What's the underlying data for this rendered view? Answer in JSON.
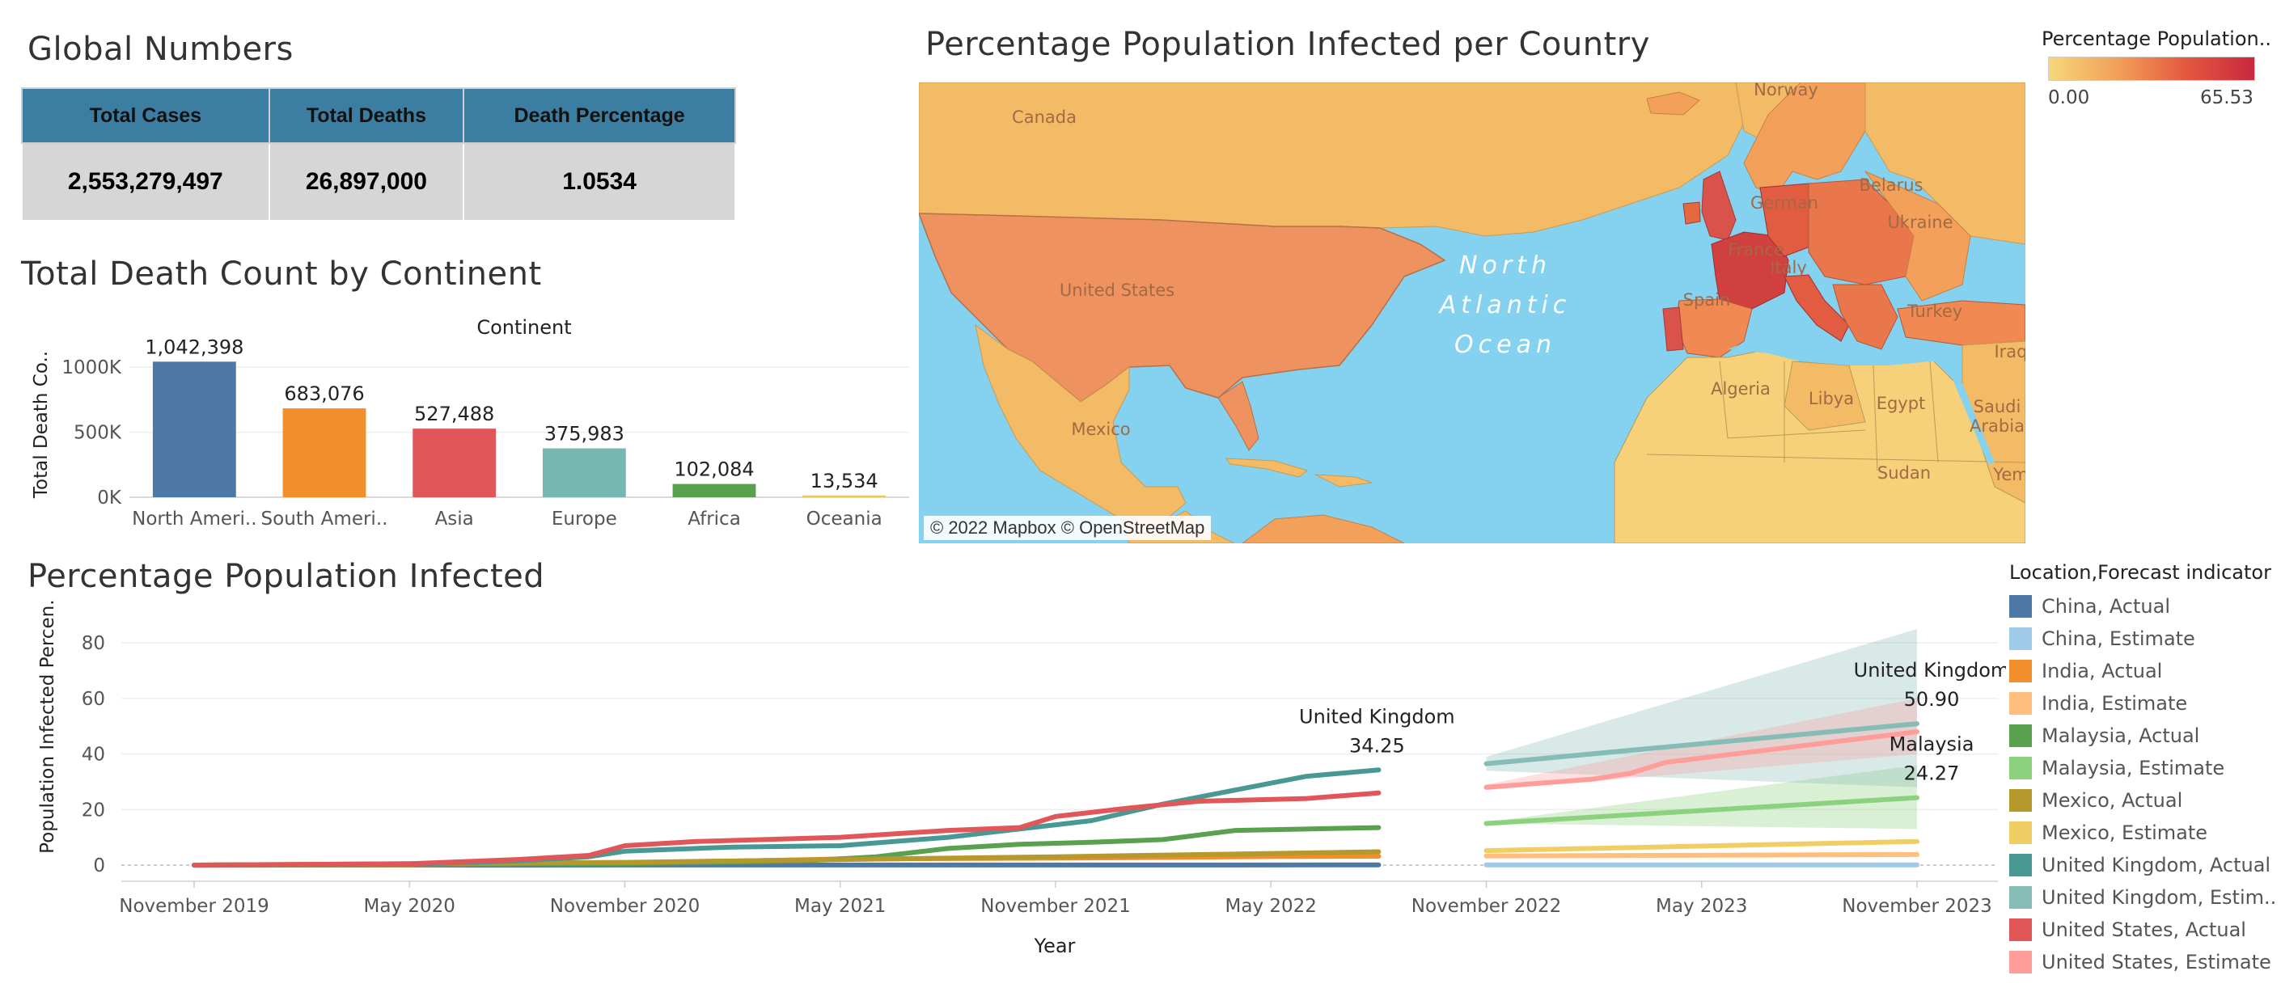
{
  "global_numbers": {
    "title": "Global Numbers",
    "headers": [
      "Total Cases",
      "Total Deaths",
      "Death Percentage"
    ],
    "values": [
      "2,553,279,497",
      "26,897,000",
      "1.0534"
    ],
    "header_color": "#3b7ea1"
  },
  "map": {
    "title": "Percentage Population Infected per Country",
    "attribution": "© 2022 Mapbox © OpenStreetMap",
    "legend_title": "Percentage Population..",
    "legend_min": "0.00",
    "legend_max": "65.53",
    "labels": [
      "Canada",
      "United States",
      "Mexico",
      "North",
      "Atlantic",
      "Ocean",
      "Norway",
      "German",
      "Belarus",
      "Ukraine",
      "France",
      "Italy",
      "Spain",
      "Turkey",
      "Algeria",
      "Libya",
      "Egypt",
      "Saudi",
      "Arabia",
      "Sudan",
      "Iraq",
      "Yem"
    ],
    "colors": {
      "ocean": "#84d2f0",
      "low": "#f7d77a",
      "mid": "#f2a05a",
      "high": "#e4593f",
      "max": "#c9283f"
    }
  },
  "chart_data": [
    {
      "type": "bar",
      "title": "Total Death Count by Continent",
      "header": "Continent",
      "ylabel": "Total Death Co..",
      "categories": [
        "North America",
        "South America",
        "Asia",
        "Europe",
        "Africa",
        "Oceania"
      ],
      "tick_labels": [
        "North Ameri..",
        "South Ameri..",
        "Asia",
        "Europe",
        "Africa",
        "Oceania"
      ],
      "values": [
        1042398,
        683076,
        527488,
        375983,
        102084,
        13534
      ],
      "value_labels": [
        "1,042,398",
        "683,076",
        "527,488",
        "375,983",
        "102,084",
        "13,534"
      ],
      "colors": [
        "#4e79a7",
        "#f28e2b",
        "#e15759",
        "#76b7b2",
        "#59a14f",
        "#edc948"
      ],
      "yticks": [
        0,
        500000,
        1000000
      ],
      "ytick_labels": [
        "0K",
        "500K",
        "1000K"
      ],
      "ylim": [
        0,
        1150000
      ]
    },
    {
      "type": "line",
      "title": "Percentage Population Infected",
      "xlabel": "Year",
      "ylabel": "Population Infected Percen..",
      "ylim": [
        0,
        85
      ],
      "yticks": [
        0,
        20,
        40,
        60,
        80
      ],
      "xticks": [
        "November 2019",
        "May 2020",
        "November 2020",
        "May 2021",
        "November 2021",
        "May 2022",
        "November 2022",
        "May 2023",
        "November 2023"
      ],
      "x_unit": "months since Nov 2019 (0-48)",
      "legend_title": "Location,Forecast indicator",
      "series": [
        {
          "name": "China, Actual",
          "color": "#4e79a7",
          "x": [
            0,
            33
          ],
          "values": [
            0.01,
            0.07
          ]
        },
        {
          "name": "China, Estimate",
          "color": "#a0cbe8",
          "x": [
            36,
            48
          ],
          "values": [
            0.08,
            0.1
          ]
        },
        {
          "name": "India, Actual",
          "color": "#f28e2b",
          "x": [
            0,
            6,
            12,
            18,
            24,
            30,
            33
          ],
          "values": [
            0,
            0.1,
            0.7,
            2.2,
            2.5,
            3.1,
            3.2
          ]
        },
        {
          "name": "India, Estimate",
          "color": "#ffbe7d",
          "x": [
            36,
            48
          ],
          "values": [
            3.3,
            3.8
          ]
        },
        {
          "name": "Malaysia, Actual",
          "color": "#59a14f",
          "x": [
            0,
            12,
            17,
            19,
            21,
            23,
            25,
            27,
            29,
            33
          ],
          "values": [
            0,
            0.5,
            1.5,
            3,
            6,
            7.5,
            8.2,
            9.2,
            12.5,
            13.5
          ]
        },
        {
          "name": "Malaysia, Estimate",
          "color": "#8cd17d",
          "x": [
            36,
            48
          ],
          "values": [
            15.0,
            24.27
          ],
          "band": [
            [
              36,
              15.5,
              15.0
            ],
            [
              48,
              36.0,
              13.0
            ]
          ]
        },
        {
          "name": "Mexico, Actual",
          "color": "#b6992d",
          "x": [
            0,
            12,
            18,
            24,
            30,
            33
          ],
          "values": [
            0,
            1,
            2,
            3,
            4.2,
            4.8
          ]
        },
        {
          "name": "Mexico, Estimate",
          "color": "#f1ce63",
          "x": [
            36,
            48
          ],
          "values": [
            5.2,
            8.5
          ]
        },
        {
          "name": "United Kingdom, Actual",
          "color": "#499894",
          "x": [
            0,
            6,
            9,
            11,
            12,
            15,
            18,
            21,
            23,
            25,
            27,
            29,
            31,
            33
          ],
          "values": [
            0,
            0.3,
            1.5,
            3,
            5,
            6.5,
            7,
            10,
            13,
            16,
            22,
            27,
            32,
            34.25
          ]
        },
        {
          "name": "United Kingdom, Estim..",
          "color": "#86bcb6",
          "x": [
            36,
            48
          ],
          "values": [
            36.5,
            50.9
          ],
          "band": [
            [
              36,
              39.0,
              34.0
            ],
            [
              48,
              85.0,
              28.0
            ]
          ]
        },
        {
          "name": "United States, Actual",
          "color": "#e15759",
          "x": [
            0,
            6,
            9,
            11,
            12,
            14,
            18,
            21,
            23,
            24,
            26,
            28,
            31,
            33
          ],
          "values": [
            0,
            0.5,
            2,
            3.5,
            7,
            8.5,
            10,
            12.5,
            13.5,
            17.5,
            20.5,
            23,
            24,
            26
          ]
        },
        {
          "name": "United States, Estimate",
          "color": "#ff9d9a",
          "x": [
            36,
            39,
            40,
            41,
            48
          ],
          "values": [
            28,
            31,
            33,
            37,
            48
          ],
          "band": [
            [
              36,
              29.0,
              27.0
            ],
            [
              48,
              60.0,
              40.0
            ]
          ]
        }
      ],
      "annotations": [
        {
          "label": "United Kingdom",
          "value_label": "34.25",
          "x": 33,
          "y": 34.25
        },
        {
          "label": "United Kingdom",
          "value_label": "50.90",
          "x": 48,
          "y": 50.9
        },
        {
          "label": "Malaysia",
          "value_label": "24.27",
          "x": 48,
          "y": 24.27
        }
      ]
    }
  ]
}
